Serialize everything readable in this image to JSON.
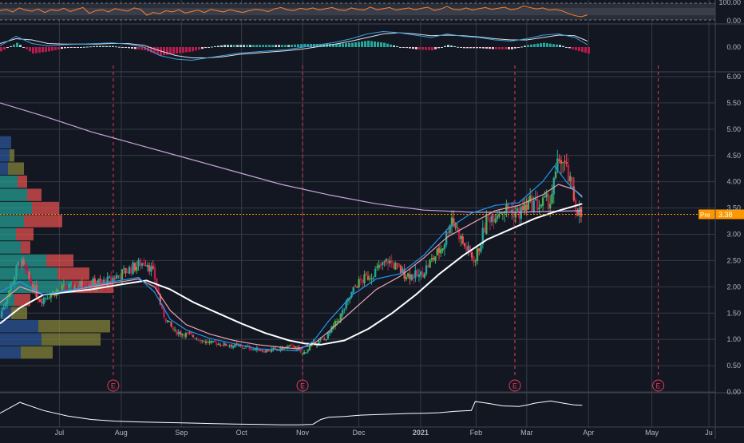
{
  "theme": {
    "background": "#131722",
    "pane_bg": "#2a2e39",
    "grid": "#363a45",
    "separator": "#434651",
    "axis_text": "#b2b5be",
    "up": "#26a69a",
    "up_bright": "#4caf50",
    "down": "#ef5350",
    "down_dark": "#b71c4c",
    "rsi": "#ff7f2a",
    "macd": "#3aa0e0",
    "signal": "#e0e0e0",
    "ma_fast": "#2196f3",
    "ma_mid": "#e8a2ae",
    "ma_slow": "#ffffff",
    "ma_long": "#c7a6d9",
    "price_line": "#ff9800",
    "earnings": "#e53b5a",
    "vp_up": "#26a69a",
    "vp_down": "#ef5350",
    "vp_value_up": "#2e5a9c",
    "vp_value_down": "#8a8a3a"
  },
  "chart_data": [
    {
      "panel": "rsi",
      "type": "line",
      "y_ticks": [
        "100.00",
        "0.00"
      ],
      "ylim": [
        0,
        100
      ],
      "band": [
        30,
        70
      ],
      "x": [
        0,
        8,
        16,
        24,
        32,
        40,
        48,
        56,
        64,
        72,
        80,
        88,
        96,
        104,
        112,
        120,
        128,
        136,
        144,
        152,
        160,
        168,
        176,
        184,
        192,
        200,
        208,
        216,
        224,
        232,
        240,
        248,
        256,
        264,
        272,
        280,
        288,
        296,
        304,
        312,
        320,
        328,
        336,
        344,
        352,
        360,
        368,
        376,
        384,
        392,
        400,
        408,
        416,
        424,
        432,
        440,
        448,
        456,
        464,
        472,
        480,
        488,
        496,
        504,
        512,
        520,
        528,
        536,
        544,
        552,
        560,
        568,
        576,
        584,
        592,
        600,
        608,
        616,
        624,
        632,
        640,
        648,
        656,
        664,
        672,
        680,
        688,
        696,
        704,
        712,
        720,
        728,
        736
      ],
      "values": [
        55,
        62,
        48,
        70,
        58,
        52,
        64,
        45,
        60,
        55,
        68,
        50,
        62,
        72,
        40,
        55,
        60,
        48,
        66,
        58,
        52,
        70,
        62,
        30,
        45,
        38,
        55,
        48,
        60,
        42,
        50,
        58,
        45,
        62,
        55,
        48,
        60,
        52,
        45,
        55,
        62,
        58,
        50,
        65,
        72,
        60,
        55,
        68,
        62,
        70,
        58,
        66,
        72,
        60,
        55,
        70,
        62,
        58,
        75,
        60,
        66,
        72,
        58,
        64,
        70,
        60,
        68,
        74,
        56,
        64,
        78,
        62,
        60,
        70,
        58,
        66,
        72,
        62,
        68,
        74,
        60,
        66,
        80,
        72,
        64,
        70,
        58,
        62,
        54,
        40,
        28,
        22,
        32
      ]
    },
    {
      "panel": "macd",
      "type": "line",
      "y_ticks": [
        "0.00"
      ],
      "series": [
        {
          "role": "macd",
          "x": [
            0,
            20,
            40,
            60,
            80,
            100,
            120,
            140,
            160,
            180,
            200,
            220,
            240,
            260,
            280,
            300,
            320,
            340,
            360,
            380,
            400,
            420,
            440,
            460,
            480,
            500,
            520,
            540,
            560,
            580,
            600,
            620,
            640,
            660,
            680,
            700,
            720,
            736
          ],
          "values": [
            0.02,
            0.18,
            0.06,
            0.02,
            0.04,
            0.05,
            0.06,
            0.07,
            0.05,
            0.0,
            -0.14,
            -0.2,
            -0.22,
            -0.18,
            -0.14,
            -0.1,
            -0.08,
            -0.06,
            -0.04,
            0.0,
            0.04,
            0.08,
            0.14,
            0.22,
            0.26,
            0.24,
            0.2,
            0.16,
            0.22,
            0.18,
            0.16,
            0.12,
            0.1,
            0.14,
            0.2,
            0.22,
            0.16,
            0.04
          ]
        },
        {
          "role": "signal",
          "x": [
            0,
            20,
            40,
            60,
            80,
            100,
            120,
            140,
            160,
            180,
            200,
            220,
            240,
            260,
            280,
            300,
            320,
            340,
            360,
            380,
            400,
            420,
            440,
            460,
            480,
            500,
            520,
            540,
            560,
            580,
            600,
            620,
            640,
            660,
            680,
            700,
            720,
            736
          ],
          "values": [
            0.06,
            0.14,
            0.12,
            0.06,
            0.05,
            0.05,
            0.05,
            0.06,
            0.06,
            0.03,
            -0.06,
            -0.14,
            -0.18,
            -0.18,
            -0.16,
            -0.12,
            -0.1,
            -0.08,
            -0.06,
            -0.03,
            0.01,
            0.05,
            0.1,
            0.16,
            0.22,
            0.24,
            0.22,
            0.19,
            0.2,
            0.19,
            0.17,
            0.14,
            0.12,
            0.12,
            0.16,
            0.2,
            0.19,
            0.1
          ]
        }
      ]
    },
    {
      "panel": "price",
      "type": "candlestick",
      "y_ticks": [
        "6.00",
        "5.50",
        "5.00",
        "4.50",
        "4.00",
        "3.50",
        "3.00",
        "2.50",
        "2.00",
        "1.50",
        "1.00",
        "0.50",
        "0.00"
      ],
      "ylim": [
        0,
        6
      ],
      "x_ticks": [
        "Jul",
        "Aug",
        "Sep",
        "Oct",
        "Nov",
        "Dec",
        "2021",
        "Feb",
        "Mar",
        "Apr",
        "May",
        "Ju"
      ],
      "x_tick_day": [
        20,
        98,
        174,
        250,
        327,
        398,
        476,
        546,
        610,
        688,
        768,
        840
      ],
      "day_range": [
        -55,
        848
      ],
      "price_label": {
        "tag": "Pre",
        "value": "3.38",
        "price": 3.38
      },
      "earnings_markers": {
        "label": "E",
        "days": [
          88,
          327,
          595,
          776
        ]
      },
      "moving_averages": [
        {
          "role": "ma_long",
          "days": [
            -55,
            0,
            60,
            120,
            180,
            240,
            300,
            360,
            420,
            480,
            540,
            600,
            680
          ],
          "values": [
            5.5,
            5.25,
            4.95,
            4.7,
            4.45,
            4.2,
            3.95,
            3.75,
            3.58,
            3.46,
            3.42,
            3.42,
            3.45
          ]
        },
        {
          "role": "ma_slow",
          "days": [
            -55,
            -30,
            0,
            30,
            60,
            100,
            130,
            160,
            190,
            220,
            250,
            280,
            310,
            330,
            350,
            380,
            410,
            440,
            470,
            500,
            530,
            560,
            590,
            620,
            650,
            680
          ],
          "values": [
            1.3,
            1.6,
            1.85,
            1.9,
            1.95,
            2.05,
            2.12,
            1.95,
            1.7,
            1.5,
            1.3,
            1.12,
            0.98,
            0.92,
            0.9,
            0.98,
            1.2,
            1.5,
            1.85,
            2.25,
            2.6,
            2.9,
            3.1,
            3.3,
            3.45,
            3.58
          ]
        },
        {
          "role": "ma_mid",
          "days": [
            -55,
            -30,
            0,
            40,
            80,
            120,
            140,
            160,
            180,
            210,
            240,
            270,
            300,
            320,
            340,
            360,
            390,
            420,
            450,
            480,
            510,
            540,
            570,
            600,
            630,
            650,
            670,
            680
          ],
          "values": [
            1.7,
            2.0,
            1.85,
            1.95,
            2.05,
            2.15,
            2.0,
            1.55,
            1.28,
            1.1,
            0.98,
            0.9,
            0.85,
            0.82,
            0.9,
            1.15,
            1.55,
            1.95,
            2.2,
            2.55,
            2.95,
            3.2,
            3.45,
            3.55,
            3.75,
            3.95,
            3.85,
            3.72
          ]
        },
        {
          "role": "ma_fast",
          "days": [
            -55,
            -30,
            0,
            40,
            80,
            120,
            140,
            160,
            180,
            210,
            240,
            270,
            300,
            320,
            340,
            360,
            390,
            420,
            450,
            480,
            510,
            540,
            570,
            600,
            630,
            645,
            660,
            680
          ],
          "values": [
            1.9,
            2.1,
            1.85,
            1.95,
            2.08,
            2.18,
            1.9,
            1.38,
            1.18,
            1.02,
            0.92,
            0.82,
            0.8,
            0.78,
            0.95,
            1.35,
            1.85,
            2.15,
            2.25,
            2.6,
            3.1,
            3.4,
            3.55,
            3.6,
            4.0,
            4.3,
            4.0,
            3.7
          ]
        }
      ],
      "ohlc_path": {
        "days": [
          -55,
          -30,
          -5,
          20,
          50,
          80,
          110,
          130,
          140,
          150,
          165,
          185,
          205,
          230,
          255,
          280,
          300,
          315,
          327,
          340,
          355,
          375,
          395,
          415,
          435,
          455,
          475,
          490,
          505,
          515,
          530,
          545,
          560,
          580,
          600,
          615,
          625,
          640,
          652,
          660,
          672,
          680
        ],
        "close": [
          1.45,
          2.5,
          1.75,
          1.95,
          2.05,
          2.1,
          2.35,
          2.5,
          2.2,
          1.5,
          1.15,
          1.08,
          0.95,
          0.9,
          0.85,
          0.78,
          0.82,
          0.88,
          0.72,
          0.92,
          1.0,
          1.45,
          2.05,
          2.25,
          2.5,
          2.25,
          2.2,
          2.5,
          2.8,
          3.35,
          2.8,
          2.5,
          3.3,
          3.5,
          3.4,
          3.6,
          3.55,
          3.65,
          4.5,
          4.2,
          3.55,
          3.3
        ]
      },
      "volume_profile": [
        {
          "price": 4.75,
          "up": 14,
          "down": 0,
          "value_area": true
        },
        {
          "price": 4.5,
          "up": 12,
          "down": 6,
          "value_area": true
        },
        {
          "price": 4.25,
          "up": 10,
          "down": 20,
          "value_area": true
        },
        {
          "price": 4.0,
          "up": 22,
          "down": 12
        },
        {
          "price": 3.75,
          "up": 34,
          "down": 18
        },
        {
          "price": 3.5,
          "up": 40,
          "down": 34
        },
        {
          "price": 3.25,
          "up": 30,
          "down": 48
        },
        {
          "price": 3.0,
          "up": 20,
          "down": 22
        },
        {
          "price": 2.75,
          "up": 26,
          "down": 12
        },
        {
          "price": 2.5,
          "up": 58,
          "down": 34
        },
        {
          "price": 2.25,
          "up": 72,
          "down": 40
        },
        {
          "price": 2.0,
          "up": 90,
          "down": 52
        },
        {
          "price": 1.75,
          "up": 18,
          "down": 20
        },
        {
          "price": 1.5,
          "up": 14,
          "down": 20,
          "value_area": true
        },
        {
          "price": 1.25,
          "up": 48,
          "down": 90,
          "value_area": true
        },
        {
          "price": 1.0,
          "up": 52,
          "down": 74,
          "value_area": true
        },
        {
          "price": 0.75,
          "up": 26,
          "down": 40,
          "value_area": true
        }
      ]
    },
    {
      "panel": "volume_oscillator",
      "type": "line",
      "days": [
        -55,
        -30,
        0,
        30,
        60,
        90,
        120,
        150,
        180,
        210,
        240,
        270,
        300,
        320,
        340,
        350,
        360,
        380,
        400,
        420,
        440,
        460,
        480,
        500,
        520,
        540,
        545,
        560,
        580,
        600,
        610,
        620,
        640,
        660,
        670,
        680
      ],
      "values": [
        0.45,
        0.85,
        0.55,
        0.35,
        0.22,
        0.16,
        0.13,
        0.11,
        0.09,
        0.07,
        0.05,
        0.04,
        0.02,
        0.02,
        0.04,
        0.22,
        0.3,
        0.33,
        0.38,
        0.4,
        0.42,
        0.44,
        0.45,
        0.47,
        0.52,
        0.55,
        0.88,
        0.82,
        0.72,
        0.7,
        0.75,
        0.82,
        0.9,
        0.8,
        0.76,
        0.74
      ]
    }
  ]
}
